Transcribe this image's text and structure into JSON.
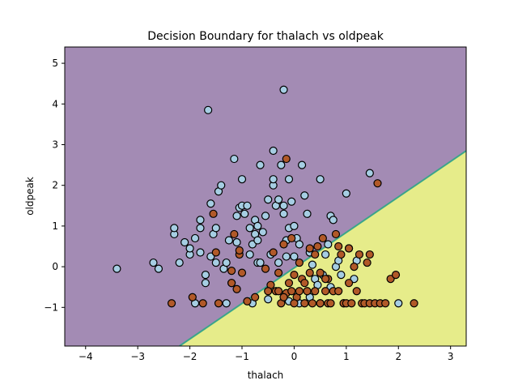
{
  "chart_data": {
    "type": "scatter",
    "title": "Decision Boundary for thalach vs oldpeak",
    "xlabel": "thalach",
    "ylabel": "oldpeak",
    "xlim": [
      -4.4,
      3.3
    ],
    "ylim": [
      -1.95,
      5.4
    ],
    "xticks": [
      -4,
      -3,
      -2,
      -1,
      0,
      1,
      2,
      3
    ],
    "yticks": [
      -1,
      0,
      1,
      2,
      3,
      4,
      5
    ],
    "grid": false,
    "regions": {
      "boundary_line": [
        [
          -2.2,
          -1.95
        ],
        [
          3.3,
          2.85
        ]
      ],
      "above_color": "#a38bb4",
      "below_color": "#e6ec8a",
      "boundary_color": "#3aa58a"
    },
    "series": [
      {
        "color": "#a6cee3",
        "points": [
          [
            -3.4,
            -0.05
          ],
          [
            -2.7,
            0.1
          ],
          [
            -2.6,
            -0.05
          ],
          [
            -2.3,
            0.8
          ],
          [
            -2.3,
            0.95
          ],
          [
            -2.2,
            0.1
          ],
          [
            -2.1,
            0.6
          ],
          [
            -2.0,
            0.3
          ],
          [
            -2.0,
            0.45
          ],
          [
            -1.9,
            0.7
          ],
          [
            -1.8,
            0.95
          ],
          [
            -1.8,
            1.15
          ],
          [
            -1.8,
            0.35
          ],
          [
            -1.7,
            -0.2
          ],
          [
            -1.7,
            -0.4
          ],
          [
            -1.6,
            1.55
          ],
          [
            -1.6,
            0.25
          ],
          [
            -1.55,
            0.8
          ],
          [
            -1.5,
            0.1
          ],
          [
            -1.45,
            1.85
          ],
          [
            -1.4,
            2.0
          ],
          [
            -1.35,
            -0.05
          ],
          [
            -1.3,
            0.1
          ],
          [
            -1.25,
            0.65
          ],
          [
            -1.2,
            -0.4
          ],
          [
            -1.15,
            2.65
          ],
          [
            -1.1,
            0.6
          ],
          [
            -1.1,
            1.25
          ],
          [
            -1.05,
            1.45
          ],
          [
            -1.0,
            2.15
          ],
          [
            -1.0,
            1.5
          ],
          [
            -0.95,
            1.3
          ],
          [
            -0.9,
            1.5
          ],
          [
            -0.85,
            0.3
          ],
          [
            -0.85,
            0.95
          ],
          [
            -0.8,
            0.55
          ],
          [
            -0.8,
            -0.9
          ],
          [
            -0.75,
            0.8
          ],
          [
            -0.75,
            1.15
          ],
          [
            -0.7,
            0.65
          ],
          [
            -0.7,
            1.0
          ],
          [
            -0.7,
            0.1
          ],
          [
            -0.65,
            2.5
          ],
          [
            -0.6,
            0.85
          ],
          [
            -0.55,
            1.25
          ],
          [
            -0.5,
            1.65
          ],
          [
            -0.45,
            0.3
          ],
          [
            -0.4,
            2.0
          ],
          [
            -0.35,
            1.5
          ],
          [
            -0.3,
            1.65
          ],
          [
            -0.3,
            0.1
          ],
          [
            -0.25,
            2.5
          ],
          [
            -0.2,
            1.5
          ],
          [
            -0.2,
            1.3
          ],
          [
            -0.15,
            0.65
          ],
          [
            -0.15,
            0.25
          ],
          [
            -0.1,
            2.15
          ],
          [
            -0.1,
            0.95
          ],
          [
            -0.05,
            1.6
          ],
          [
            0.0,
            1.0
          ],
          [
            0.05,
            0.7
          ],
          [
            0.1,
            0.55
          ],
          [
            0.15,
            2.5
          ],
          [
            0.2,
            1.75
          ],
          [
            0.25,
            1.3
          ],
          [
            0.3,
            0.35
          ],
          [
            0.35,
            0.05
          ],
          [
            0.4,
            -0.3
          ],
          [
            0.5,
            2.15
          ],
          [
            0.55,
            -0.2
          ],
          [
            0.6,
            0.3
          ],
          [
            0.65,
            0.55
          ],
          [
            0.7,
            1.25
          ],
          [
            0.75,
            1.15
          ],
          [
            0.8,
            0.0
          ],
          [
            0.85,
            0.15
          ],
          [
            0.9,
            -0.2
          ],
          [
            1.0,
            1.8
          ],
          [
            1.05,
            0.45
          ],
          [
            1.15,
            -0.3
          ],
          [
            1.2,
            0.15
          ],
          [
            1.45,
            2.3
          ],
          [
            0.1,
            -0.9
          ],
          [
            0.3,
            -0.75
          ],
          [
            -0.1,
            -0.85
          ],
          [
            -0.5,
            -0.8
          ],
          [
            0.5,
            -0.9
          ],
          [
            0.7,
            -0.5
          ],
          [
            0.95,
            -0.9
          ],
          [
            2.0,
            -0.9
          ],
          [
            -1.3,
            -0.9
          ],
          [
            -1.9,
            -0.9
          ],
          [
            -1.65,
            3.85
          ],
          [
            -0.2,
            4.35
          ],
          [
            -0.4,
            2.85
          ],
          [
            -0.4,
            2.15
          ],
          [
            -1.5,
            0.95
          ],
          [
            -0.65,
            0.1
          ],
          [
            0.0,
            0.25
          ],
          [
            0.45,
            -0.45
          ]
        ]
      },
      {
        "color": "#b15928",
        "points": [
          [
            -2.35,
            -0.9
          ],
          [
            -1.95,
            -0.75
          ],
          [
            -1.75,
            -0.9
          ],
          [
            -1.55,
            1.3
          ],
          [
            -1.5,
            0.35
          ],
          [
            -1.45,
            -0.9
          ],
          [
            -1.2,
            -0.1
          ],
          [
            -1.2,
            -0.4
          ],
          [
            -1.15,
            0.8
          ],
          [
            -1.1,
            -0.55
          ],
          [
            -1.05,
            0.3
          ],
          [
            -1.05,
            0.4
          ],
          [
            -1.0,
            -0.15
          ],
          [
            -0.9,
            -0.85
          ],
          [
            -0.75,
            -0.75
          ],
          [
            -0.55,
            -0.05
          ],
          [
            -0.45,
            -0.45
          ],
          [
            -0.4,
            0.35
          ],
          [
            -0.35,
            -0.6
          ],
          [
            -0.3,
            -0.6
          ],
          [
            -0.3,
            -0.15
          ],
          [
            -0.25,
            -0.9
          ],
          [
            -0.2,
            0.55
          ],
          [
            -0.15,
            2.65
          ],
          [
            -0.15,
            -0.65
          ],
          [
            -0.1,
            -0.4
          ],
          [
            -0.05,
            -0.6
          ],
          [
            -0.05,
            0.7
          ],
          [
            0.0,
            -0.2
          ],
          [
            0.05,
            -0.75
          ],
          [
            0.1,
            0.1
          ],
          [
            0.1,
            -0.6
          ],
          [
            0.15,
            -0.3
          ],
          [
            0.2,
            -0.4
          ],
          [
            0.25,
            -0.6
          ],
          [
            0.3,
            0.45
          ],
          [
            0.35,
            -0.9
          ],
          [
            0.4,
            0.3
          ],
          [
            0.4,
            -0.6
          ],
          [
            0.45,
            0.5
          ],
          [
            0.5,
            -0.15
          ],
          [
            0.5,
            -0.9
          ],
          [
            0.55,
            0.7
          ],
          [
            0.6,
            -0.6
          ],
          [
            0.65,
            -0.3
          ],
          [
            0.65,
            -0.9
          ],
          [
            0.7,
            -0.9
          ],
          [
            0.75,
            -0.6
          ],
          [
            0.8,
            0.8
          ],
          [
            0.85,
            0.5
          ],
          [
            0.85,
            -0.6
          ],
          [
            0.9,
            0.3
          ],
          [
            0.95,
            -0.9
          ],
          [
            1.0,
            -0.9
          ],
          [
            1.05,
            -0.4
          ],
          [
            1.1,
            -0.9
          ],
          [
            1.15,
            0.0
          ],
          [
            1.2,
            -0.6
          ],
          [
            1.25,
            0.3
          ],
          [
            1.3,
            -0.9
          ],
          [
            1.35,
            -0.9
          ],
          [
            1.4,
            0.1
          ],
          [
            1.45,
            0.3
          ],
          [
            1.45,
            -0.9
          ],
          [
            1.55,
            -0.9
          ],
          [
            1.6,
            2.05
          ],
          [
            1.65,
            -0.9
          ],
          [
            1.75,
            -0.9
          ],
          [
            1.85,
            -0.3
          ],
          [
            1.95,
            -0.2
          ],
          [
            2.3,
            -0.9
          ],
          [
            0.2,
            -0.9
          ],
          [
            0.0,
            -0.9
          ],
          [
            -0.5,
            -0.6
          ],
          [
            -0.2,
            -0.75
          ],
          [
            0.3,
            -0.15
          ],
          [
            0.6,
            -0.3
          ],
          [
            1.05,
            0.45
          ]
        ]
      }
    ]
  }
}
